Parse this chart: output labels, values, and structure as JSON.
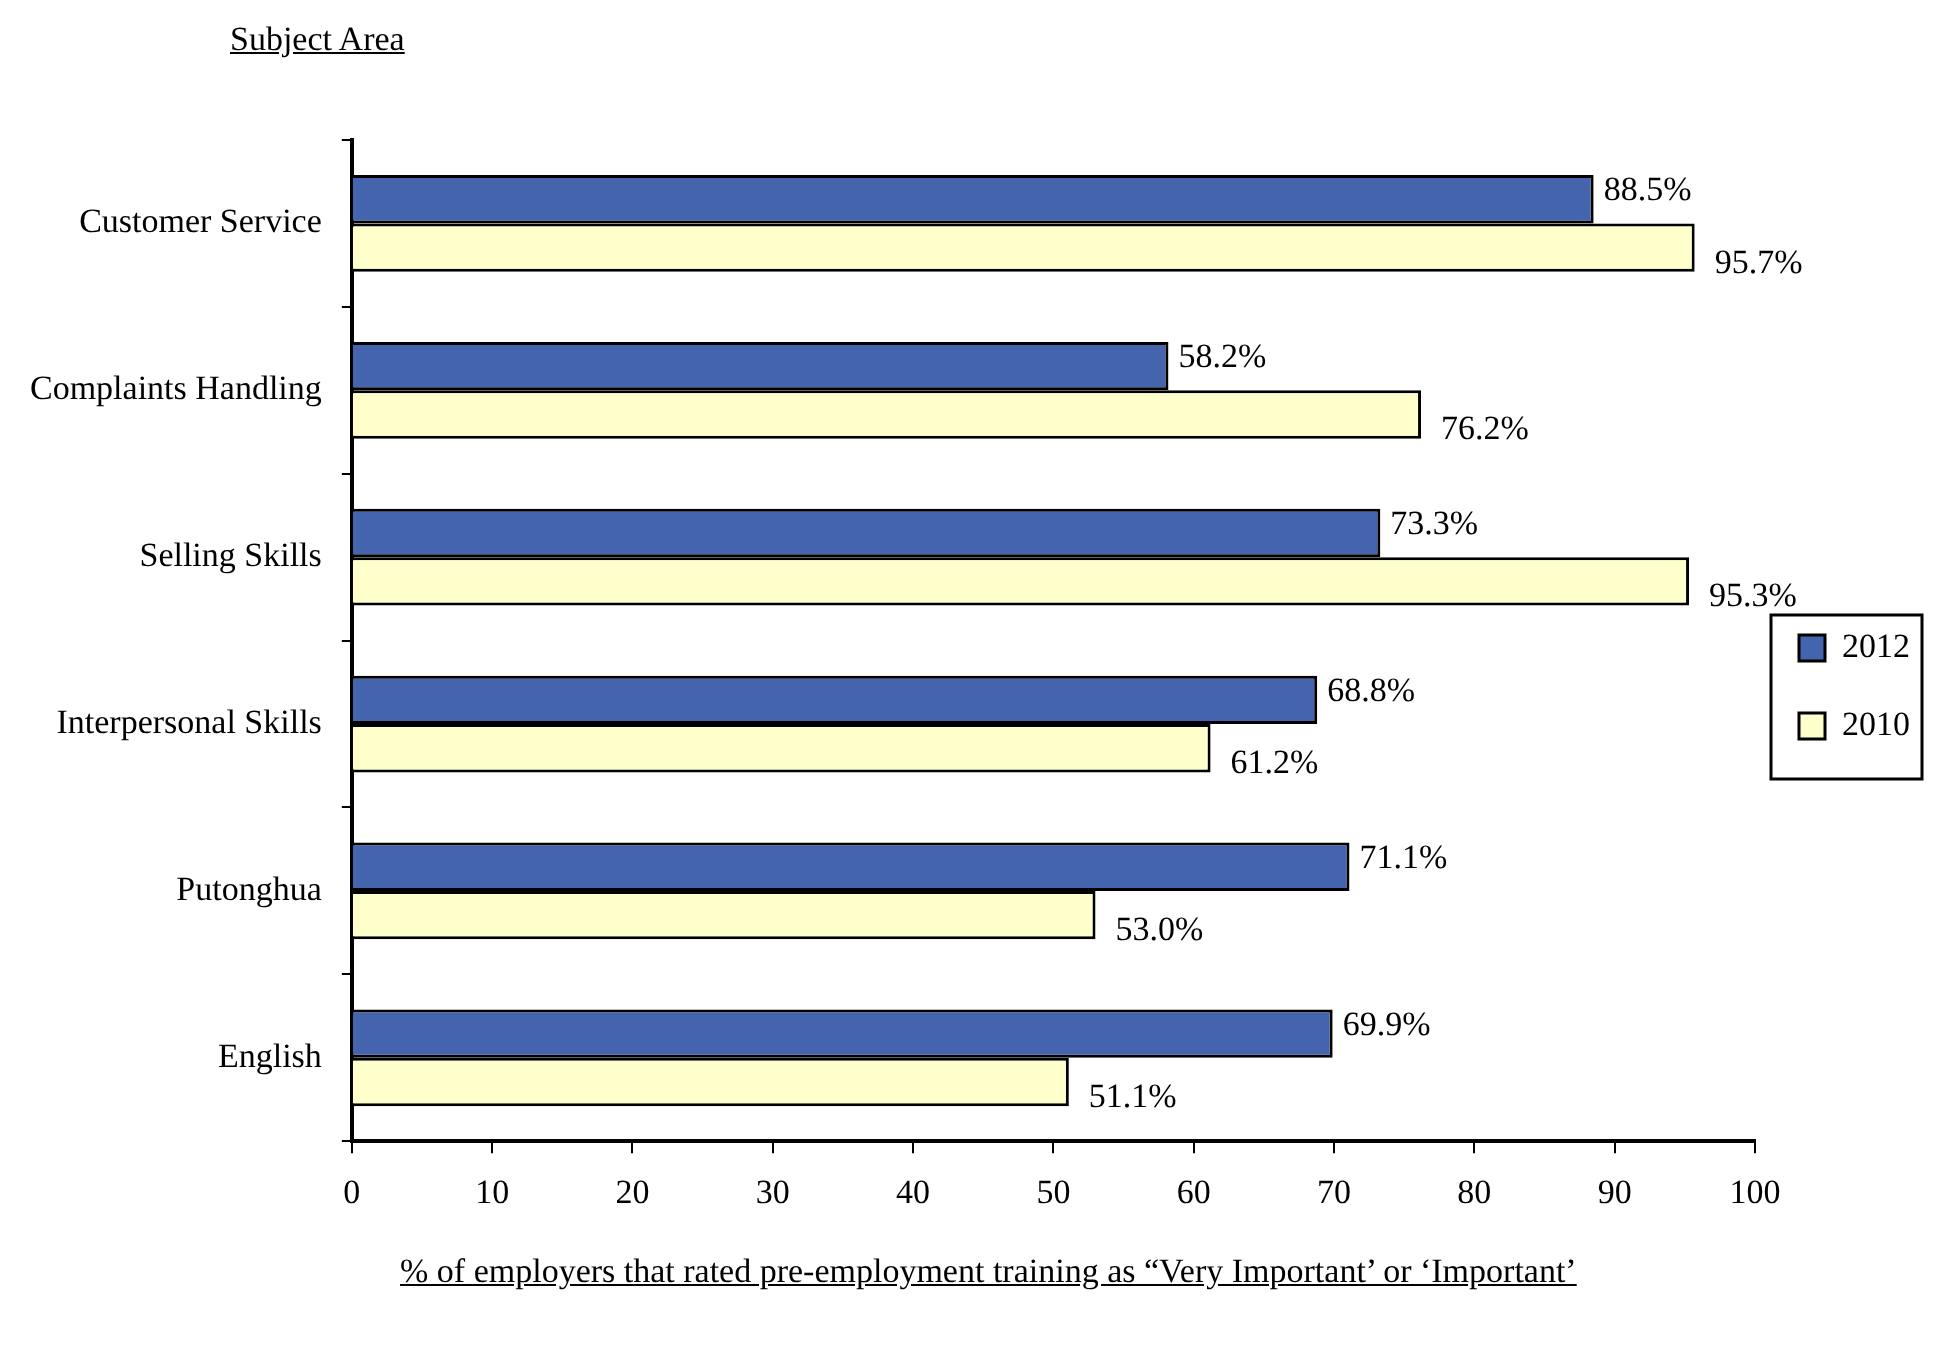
{
  "chart_data": {
    "type": "bar",
    "orientation": "horizontal",
    "ylabel": "Subject Area",
    "xlabel": "% of employers that rated pre-employment training as “Very Important’ or ‘Important’",
    "categories": [
      "Customer Service",
      "Complaints Handling",
      "Selling Skills",
      "Interpersonal Skills",
      "Putonghua",
      "English"
    ],
    "series": [
      {
        "name": "2012",
        "color": "#4464ad",
        "values": [
          88.5,
          58.2,
          73.3,
          68.8,
          71.1,
          69.9
        ],
        "value_labels": [
          "88.5%",
          "58.2%",
          "73.3%",
          "68.8%",
          "71.1%",
          "69.9%"
        ]
      },
      {
        "name": "2010",
        "color": "#ffffcc",
        "values": [
          95.7,
          76.2,
          95.3,
          61.2,
          53.0,
          51.1
        ],
        "value_labels": [
          "95.7%",
          "76.2%",
          "95.3%",
          "61.2%",
          "53.0%",
          "51.1%"
        ]
      }
    ],
    "xlim": [
      0,
      100
    ],
    "xticks": [
      0,
      10,
      20,
      30,
      40,
      50,
      60,
      70,
      80,
      90,
      100
    ],
    "grid": false,
    "legend": "right"
  }
}
